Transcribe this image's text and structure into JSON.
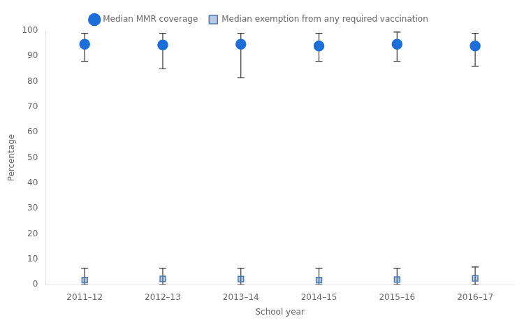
{
  "chart_data": {
    "type": "scatter",
    "categories": [
      "2011–12",
      "2012–13",
      "2013–14",
      "2014–15",
      "2015–16",
      "2016–17"
    ],
    "series": [
      {
        "name": "Median MMR coverage",
        "color": "#1a6fdb",
        "marker": "circle",
        "values": [
          94.7,
          94.4,
          94.7,
          94.0,
          94.7,
          94.0
        ],
        "low": [
          88.0,
          85.0,
          81.5,
          88.0,
          88.0,
          86.0
        ],
        "high": [
          99.0,
          99.0,
          99.0,
          99.0,
          99.5,
          99.0
        ]
      },
      {
        "name": "Median exemption from any required vaccination",
        "color": "#4a7ab5",
        "marker": "square",
        "values": [
          1.8,
          2.3,
          2.2,
          1.8,
          2.0,
          2.5
        ],
        "low": [
          0.0,
          0.0,
          0.0,
          0.0,
          0.0,
          0.0
        ],
        "high": [
          6.5,
          6.5,
          6.5,
          6.5,
          6.5,
          7.0
        ]
      }
    ],
    "x_label": "School year",
    "y_label": "Percentage",
    "ylim": [
      0,
      100
    ],
    "yticks": [
      0,
      10,
      20,
      30,
      40,
      50,
      60,
      70,
      80,
      90,
      100
    ],
    "grid": false,
    "legend": "top"
  }
}
